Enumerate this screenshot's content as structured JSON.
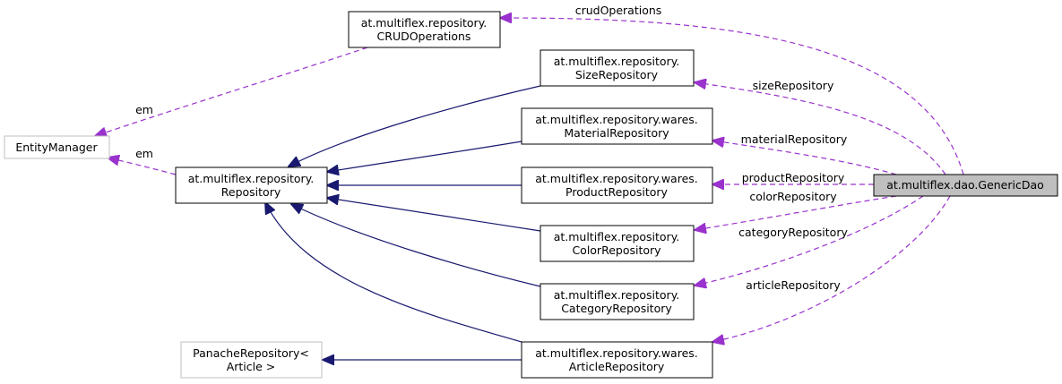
{
  "nodes": {
    "crud": [
      "at.multiflex.repository.",
      "CRUDOperations"
    ],
    "size": [
      "at.multiflex.repository.",
      "SizeRepository"
    ],
    "material": [
      "at.multiflex.repository.wares.",
      "MaterialRepository"
    ],
    "product": [
      "at.multiflex.repository.wares.",
      "ProductRepository"
    ],
    "color": [
      "at.multiflex.repository.",
      "ColorRepository"
    ],
    "category": [
      "at.multiflex.repository.",
      "CategoryRepository"
    ],
    "article": [
      "at.multiflex.repository.wares.",
      "ArticleRepository"
    ],
    "repository": [
      "at.multiflex.repository.",
      "Repository"
    ],
    "entity_manager": [
      "EntityManager"
    ],
    "panache": [
      "PanacheRepository<",
      "Article >"
    ],
    "generic_dao": [
      "at.multiflex.dao.GenericDao"
    ]
  },
  "edge_labels": {
    "crud": "crudOperations",
    "size": "sizeRepository",
    "material": "materialRepository",
    "product": "productRepository",
    "color": "colorRepository",
    "category": "categoryRepository",
    "article": "articleRepository",
    "em_crud": "em",
    "em_repository": "em"
  },
  "colors": {
    "inheritance": "#191970",
    "usage": "#9a32cd",
    "focus_fill": "#bfbfbf",
    "external_border": "#bfbfbf"
  }
}
